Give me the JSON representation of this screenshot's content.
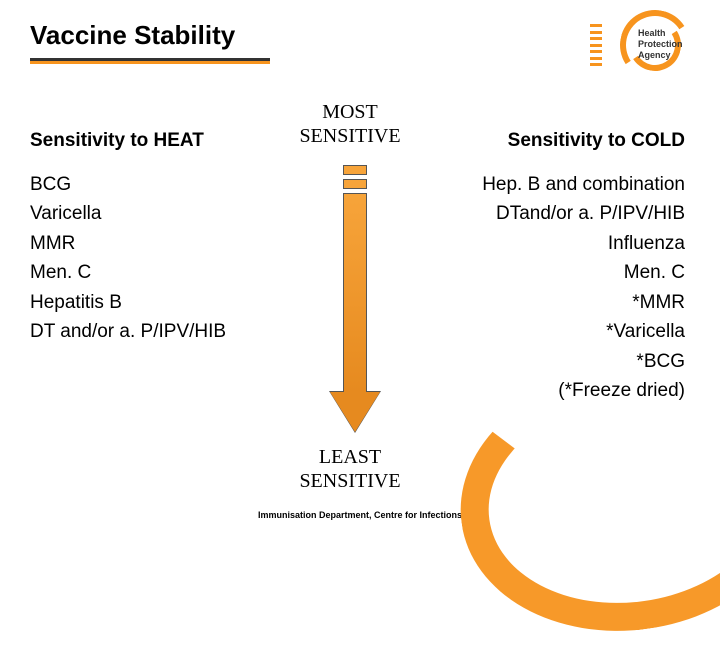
{
  "title": "Vaccine Stability",
  "logo": {
    "line1": "Health",
    "line2": "Protection",
    "line3": "Agency"
  },
  "heatLabel": "Sensitivity to HEAT",
  "coldLabel": "Sensitivity to COLD",
  "mostLabel": "MOST SENSITIVE",
  "leastLabel": "LEAST SENSITIVE",
  "heatList": [
    "BCG",
    "Varicella",
    "MMR",
    "Men. C",
    "Hepatitis B",
    "DT and/or a. P/IPV/HIB"
  ],
  "coldList": [
    "Hep. B and combination",
    "DTand/or a. P/IPV/HIB",
    "Influenza",
    "Men. C",
    "*MMR",
    "*Varicella",
    "*BCG",
    "(*Freeze dried)"
  ],
  "footer": "Immunisation Department, Centre for Infections",
  "colors": {
    "accent": "#f7941e",
    "text": "#000000",
    "arrowFill": "#f7a43a",
    "arrowBorder": "#555555"
  }
}
